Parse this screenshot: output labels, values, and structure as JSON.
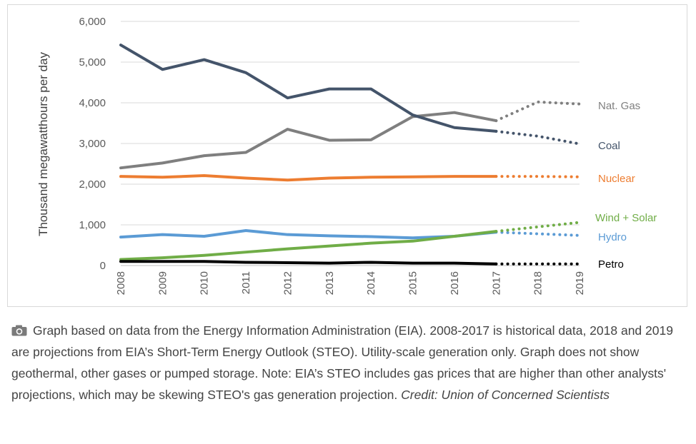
{
  "chart_data": {
    "type": "line",
    "title": "",
    "xlabel": "",
    "ylabel": "Thousand megawatthours per day",
    "x": [
      "2008",
      "2009",
      "2010",
      "2011",
      "2012",
      "2013",
      "2014",
      "2015",
      "2016",
      "2017",
      "2018",
      "2019"
    ],
    "ylim": [
      0,
      6000
    ],
    "yticks": [
      "0",
      "1,000",
      "2,000",
      "3,000",
      "4,000",
      "5,000",
      "6,000"
    ],
    "ytick_values": [
      0,
      1000,
      2000,
      3000,
      4000,
      5000,
      6000
    ],
    "grid": true,
    "legend": "none",
    "historical_last_index": 9,
    "series": [
      {
        "name": "Nat. Gas",
        "color": "#7f7f7f",
        "values": [
          2400,
          2520,
          2700,
          2780,
          3350,
          3080,
          3090,
          3660,
          3760,
          3560,
          4020,
          3970
        ]
      },
      {
        "name": "Coal",
        "color": "#44546a",
        "values": [
          5420,
          4820,
          5060,
          4740,
          4120,
          4340,
          4340,
          3700,
          3390,
          3300,
          3180,
          2990
        ]
      },
      {
        "name": "Nuclear",
        "color": "#ed7d31",
        "values": [
          2190,
          2170,
          2210,
          2150,
          2100,
          2150,
          2170,
          2180,
          2190,
          2190,
          2190,
          2180
        ]
      },
      {
        "name": "Wind + Solar",
        "color": "#70ad47",
        "values": [
          150,
          190,
          250,
          330,
          410,
          480,
          550,
          600,
          720,
          840,
          950,
          1060
        ]
      },
      {
        "name": "Hydro",
        "color": "#5b9bd5",
        "values": [
          700,
          760,
          720,
          860,
          760,
          730,
          710,
          680,
          720,
          820,
          780,
          740
        ]
      },
      {
        "name": "Petro",
        "color": "#000000",
        "values": [
          100,
          100,
          100,
          80,
          70,
          60,
          80,
          60,
          60,
          40,
          40,
          40
        ]
      }
    ]
  },
  "caption": {
    "icon": "camera-icon",
    "text": "Graph based on data from the Energy Information Administration (EIA). 2008-2017 is historical data, 2018 and 2019 are projections from EIA’s Short-Term Energy Outlook (STEO). Utility-scale generation only. Graph does not show geothermal, other gases or pumped storage. Note: EIA’s STEO includes gas prices that are higher than other analysts' projections, which may be skewing STEO's gas generation projection.",
    "credit": "Credit: Union of Concerned Scientists"
  }
}
